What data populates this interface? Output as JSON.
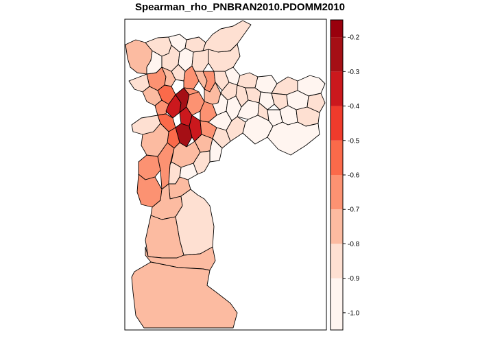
{
  "title": "Spearman_rho_PNBRAN2010.PDOMM2010",
  "legend": {
    "bins": [
      {
        "from": -1.0,
        "to": -0.9,
        "color": "#fff5f0"
      },
      {
        "from": -0.9,
        "to": -0.8,
        "color": "#fee0d2"
      },
      {
        "from": -0.8,
        "to": -0.7,
        "color": "#fcbba1"
      },
      {
        "from": -0.7,
        "to": -0.6,
        "color": "#fc9272"
      },
      {
        "from": -0.6,
        "to": -0.5,
        "color": "#fb6a4a"
      },
      {
        "from": -0.5,
        "to": -0.4,
        "color": "#ef3b2c"
      },
      {
        "from": -0.4,
        "to": -0.3,
        "color": "#cb181d"
      },
      {
        "from": -0.3,
        "to": -0.2,
        "color": "#a50f15"
      },
      {
        "from": -0.2,
        "to": -0.15,
        "color": "#99000d"
      }
    ],
    "ticks": [
      "-0.2",
      "-0.3",
      "-0.4",
      "-0.5",
      "-0.6",
      "-0.7",
      "-0.8",
      "-0.9",
      "-1.0"
    ]
  },
  "colors": {
    "c1": "#fff5f0",
    "c2": "#fee0d2",
    "c3": "#fcbba1",
    "c4": "#fc9272",
    "c5": "#fb6a4a",
    "c6": "#cb181d",
    "c7": "#a50f15"
  },
  "districts": [
    {
      "id": "north-west-1",
      "cls": "c3"
    },
    {
      "id": "north-1",
      "cls": "c2"
    },
    {
      "id": "north-2",
      "cls": "c1"
    },
    {
      "id": "north-3",
      "cls": "c2"
    },
    {
      "id": "north-4",
      "cls": "c2"
    },
    {
      "id": "north-5",
      "cls": "c1"
    },
    {
      "id": "north-6",
      "cls": "c2"
    },
    {
      "id": "north-7",
      "cls": "c1"
    },
    {
      "id": "north-8",
      "cls": "c2"
    },
    {
      "id": "north-9",
      "cls": "c2"
    },
    {
      "id": "nw-inner-1",
      "cls": "c4"
    },
    {
      "id": "nw-inner-2",
      "cls": "c3"
    },
    {
      "id": "nw-inner-3",
      "cls": "c2"
    },
    {
      "id": "nw-inner-4",
      "cls": "c4"
    },
    {
      "id": "nw-inner-5",
      "cls": "c3"
    },
    {
      "id": "nw-inner-6",
      "cls": "c4"
    },
    {
      "id": "west-1",
      "cls": "c2"
    },
    {
      "id": "west-2",
      "cls": "c3"
    },
    {
      "id": "west-3",
      "cls": "c4"
    },
    {
      "id": "west-4",
      "cls": "c2"
    },
    {
      "id": "center-1",
      "cls": "c5"
    },
    {
      "id": "center-2",
      "cls": "c6"
    },
    {
      "id": "center-3",
      "cls": "c7"
    },
    {
      "id": "center-4",
      "cls": "c6"
    },
    {
      "id": "center-5",
      "cls": "c5"
    },
    {
      "id": "center-6",
      "cls": "c7"
    },
    {
      "id": "center-7",
      "cls": "c6"
    },
    {
      "id": "center-8",
      "cls": "c5"
    },
    {
      "id": "center-9",
      "cls": "c4"
    },
    {
      "id": "center-10",
      "cls": "c4"
    },
    {
      "id": "center-11",
      "cls": "c4"
    },
    {
      "id": "center-12",
      "cls": "c4"
    },
    {
      "id": "center-13",
      "cls": "c3"
    },
    {
      "id": "center-14",
      "cls": "c3"
    },
    {
      "id": "east-inner-1",
      "cls": "c2"
    },
    {
      "id": "east-inner-2",
      "cls": "c1"
    },
    {
      "id": "east-inner-3",
      "cls": "c2"
    },
    {
      "id": "east-inner-4",
      "cls": "c1"
    },
    {
      "id": "east-inner-5",
      "cls": "c1"
    },
    {
      "id": "east-inner-6",
      "cls": "c2"
    },
    {
      "id": "east-inner-7",
      "cls": "c1"
    },
    {
      "id": "east-inner-8",
      "cls": "c2"
    },
    {
      "id": "east-inner-9",
      "cls": "c1"
    },
    {
      "id": "east-inner-10",
      "cls": "c2"
    },
    {
      "id": "east-1",
      "cls": "c2"
    },
    {
      "id": "east-2",
      "cls": "c1"
    },
    {
      "id": "east-3",
      "cls": "c2"
    },
    {
      "id": "east-4",
      "cls": "c1"
    },
    {
      "id": "east-5",
      "cls": "c2"
    },
    {
      "id": "east-6",
      "cls": "c1"
    },
    {
      "id": "east-7",
      "cls": "c2"
    },
    {
      "id": "east-8",
      "cls": "c1"
    },
    {
      "id": "east-9",
      "cls": "c2"
    },
    {
      "id": "east-10",
      "cls": "c1"
    },
    {
      "id": "east-11",
      "cls": "c2"
    },
    {
      "id": "east-12",
      "cls": "c1"
    },
    {
      "id": "east-13",
      "cls": "c1"
    },
    {
      "id": "east-14",
      "cls": "c2"
    },
    {
      "id": "east-15",
      "cls": "c1"
    },
    {
      "id": "east-16",
      "cls": "c1"
    },
    {
      "id": "south-1",
      "cls": "c4"
    },
    {
      "id": "south-2",
      "cls": "c4"
    },
    {
      "id": "south-3",
      "cls": "c3"
    },
    {
      "id": "south-4",
      "cls": "c4"
    },
    {
      "id": "south-5",
      "cls": "c3"
    },
    {
      "id": "south-6",
      "cls": "c2"
    },
    {
      "id": "south-7",
      "cls": "c1"
    },
    {
      "id": "south-8",
      "cls": "c2"
    },
    {
      "id": "south-9",
      "cls": "c3"
    },
    {
      "id": "south-10",
      "cls": "c3"
    },
    {
      "id": "south-11",
      "cls": "c2"
    },
    {
      "id": "south-12",
      "cls": "c3"
    },
    {
      "id": "far-south-1",
      "cls": "c3"
    },
    {
      "id": "far-south-2",
      "cls": "c3"
    }
  ]
}
